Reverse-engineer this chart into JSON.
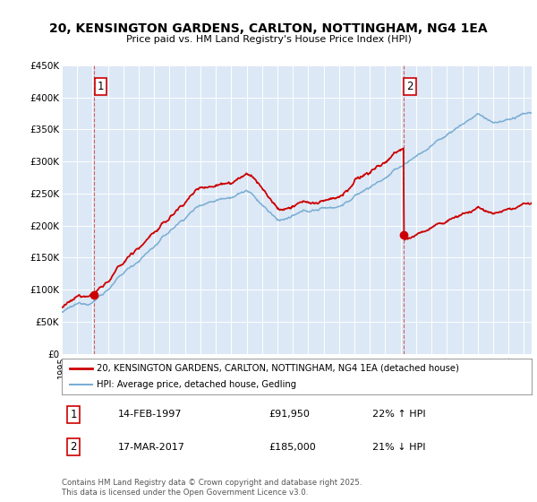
{
  "title": "20, KENSINGTON GARDENS, CARLTON, NOTTINGHAM, NG4 1EA",
  "subtitle": "Price paid vs. HM Land Registry's House Price Index (HPI)",
  "ylim": [
    0,
    450000
  ],
  "xlim_start": 1995.0,
  "xlim_end": 2025.5,
  "plot_bg_color": "#dce8f5",
  "fig_bg_color": "#ffffff",
  "grid_color": "#ffffff",
  "sale1_yr": 1997.12,
  "sale1_price": 91950,
  "sale2_yr": 2017.21,
  "sale2_price": 185000,
  "red_color": "#cc0000",
  "blue_color": "#7aadd4",
  "legend_line1": "20, KENSINGTON GARDENS, CARLTON, NOTTINGHAM, NG4 1EA (detached house)",
  "legend_line2": "HPI: Average price, detached house, Gedling",
  "ann1_date": "14-FEB-1997",
  "ann1_price": "£91,950",
  "ann1_hpi": "22% ↑ HPI",
  "ann2_date": "17-MAR-2017",
  "ann2_price": "£185,000",
  "ann2_hpi": "21% ↓ HPI",
  "footnote": "Contains HM Land Registry data © Crown copyright and database right 2025.\nThis data is licensed under the Open Government Licence v3.0.",
  "yticks": [
    0,
    50000,
    100000,
    150000,
    200000,
    250000,
    300000,
    350000,
    400000,
    450000
  ],
  "ylabels": [
    "£0",
    "£50K",
    "£100K",
    "£150K",
    "£200K",
    "£250K",
    "£300K",
    "£350K",
    "£400K",
    "£450K"
  ]
}
